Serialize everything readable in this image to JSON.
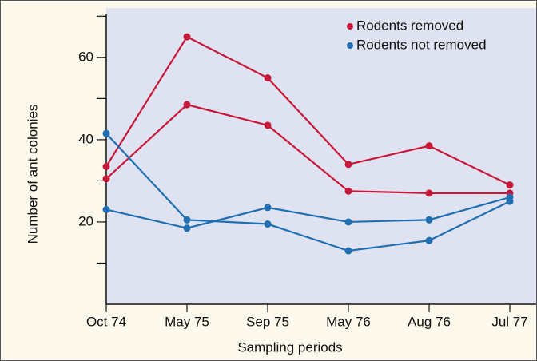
{
  "chart_data": {
    "type": "line",
    "x_label": "Sampling periods",
    "y_label": "Number of ant colonies",
    "categories": [
      "Oct 74",
      "May 75",
      "Sep 75",
      "May 76",
      "Aug 76",
      "Jul 77"
    ],
    "series": [
      {
        "name": "Rodents removed",
        "color": "#c8183a",
        "values": [
          33.5,
          65,
          55,
          34,
          38.5,
          29
        ]
      },
      {
        "name": "Rodents removed",
        "color": "#c8183a",
        "values": [
          30.5,
          48.5,
          43.5,
          27.5,
          27,
          27
        ]
      },
      {
        "name": "Rodents not removed",
        "color": "#1f6fb2",
        "values": [
          41.5,
          20.5,
          19.5,
          13,
          15.5,
          25
        ]
      },
      {
        "name": "Rodents not removed",
        "color": "#1f6fb2",
        "values": [
          23,
          18.5,
          23.5,
          20,
          20.5,
          26
        ]
      }
    ],
    "ylim": [
      0,
      72
    ],
    "yticks": [
      20,
      40,
      60
    ],
    "yminor_ticks": [
      10,
      30,
      50,
      70
    ],
    "legend": "top-right"
  }
}
